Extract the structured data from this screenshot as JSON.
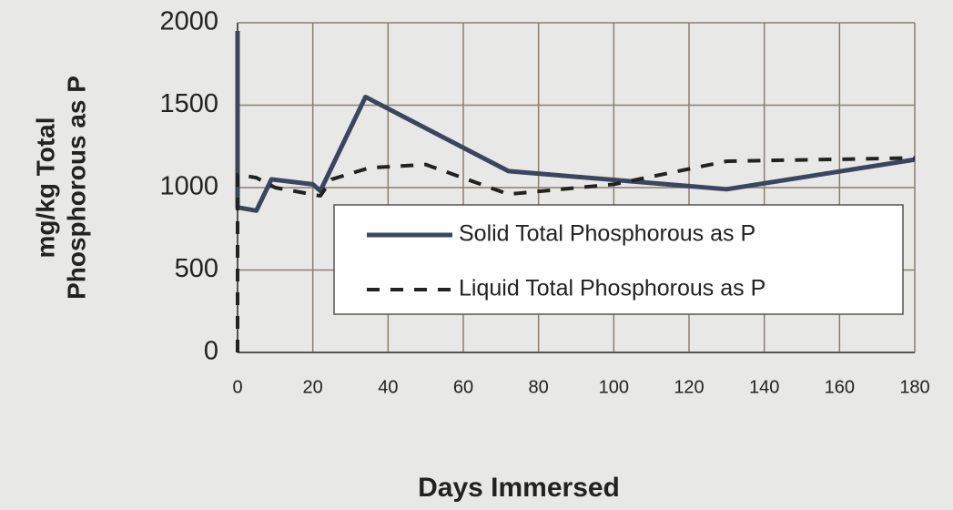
{
  "chart_data": {
    "type": "line",
    "xlabel": "Days Immersed",
    "ylabel": [
      "mg/kg Total",
      "Phosphorous as P"
    ],
    "xlim": [
      0,
      180
    ],
    "xticks": [
      0,
      20,
      40,
      60,
      80,
      100,
      120,
      140,
      160,
      180
    ],
    "ylim": [
      0,
      2000
    ],
    "yticks": [
      0,
      500,
      1000,
      1500,
      2000
    ],
    "grid": true,
    "series": [
      {
        "name": "Solid Total Phosphorous as P",
        "color": "#3a4660",
        "style": "solid",
        "x": [
          0,
          0,
          5,
          9,
          20,
          22,
          34,
          72,
          130,
          180
        ],
        "values": [
          1950,
          880,
          860,
          1050,
          1020,
          980,
          1550,
          1100,
          990,
          1170
        ]
      },
      {
        "name": "Liquid  Total Phosphorous as P",
        "color": "#222222",
        "style": "dashed",
        "x": [
          0,
          0,
          5,
          10,
          22,
          25,
          35,
          50,
          72,
          100,
          130,
          180
        ],
        "values": [
          0,
          1080,
          1060,
          1000,
          950,
          1050,
          1120,
          1140,
          960,
          1020,
          1160,
          1180
        ]
      }
    ]
  }
}
